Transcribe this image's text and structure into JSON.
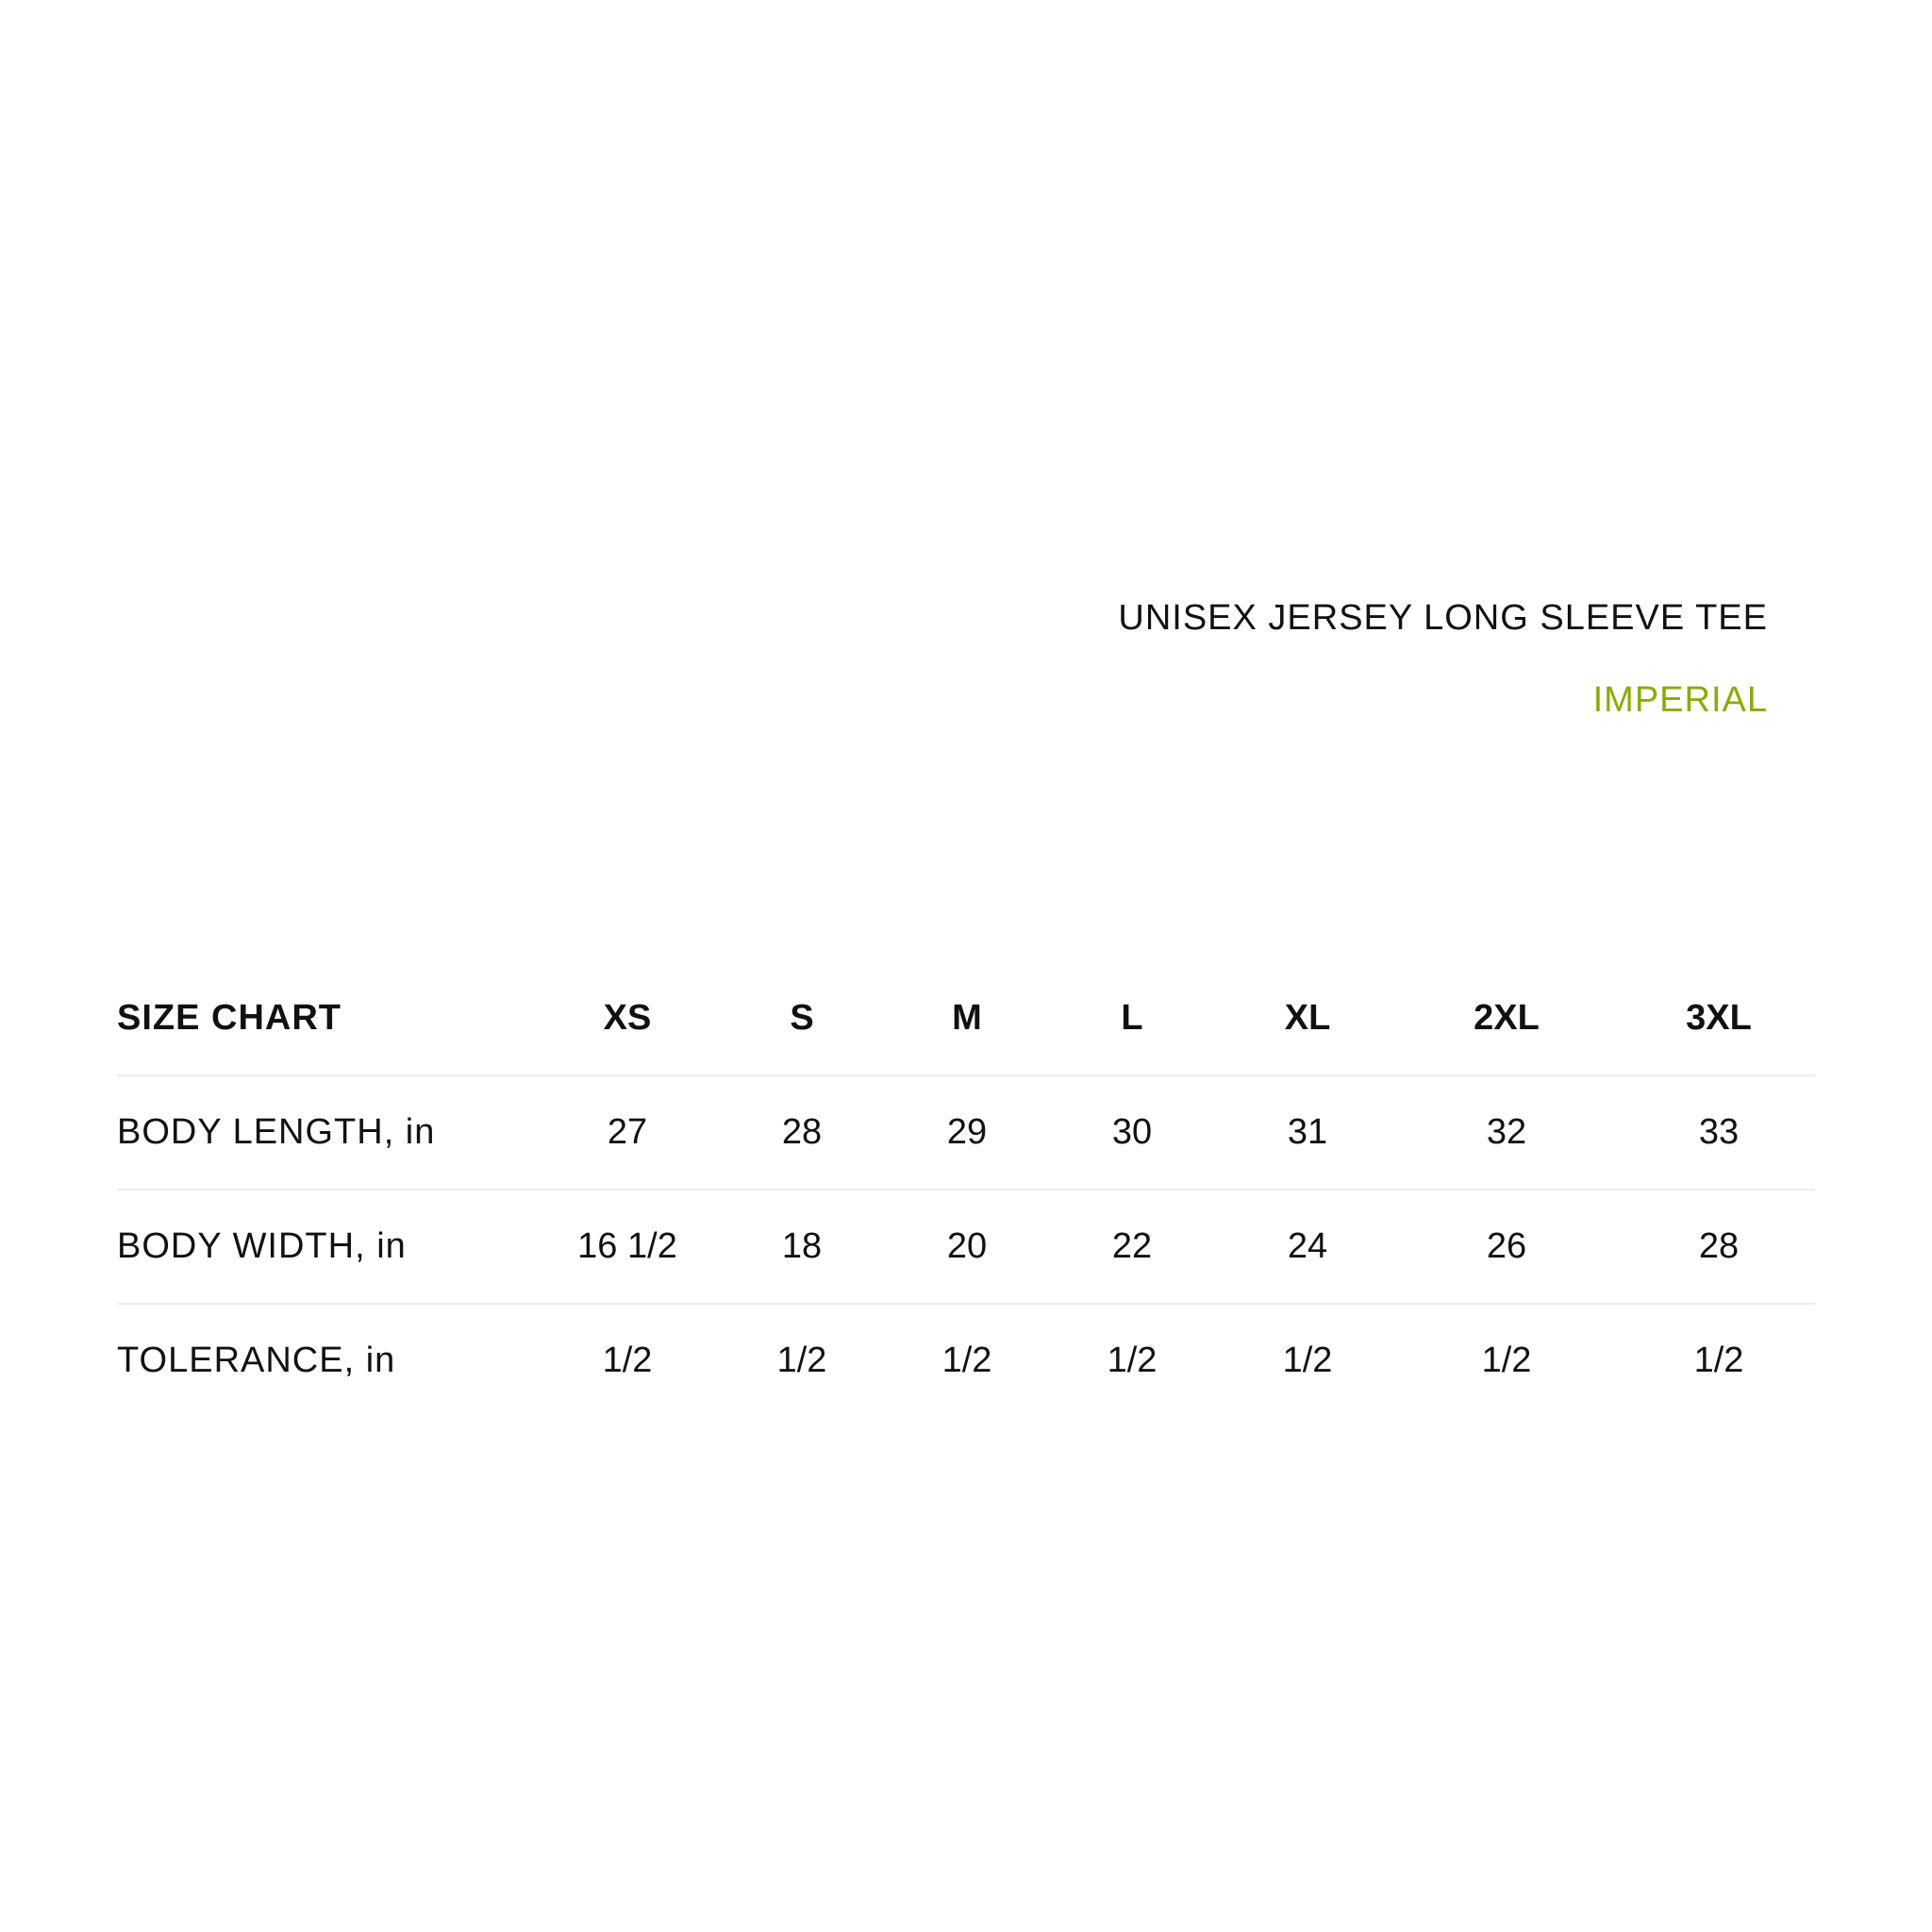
{
  "title": "UNISEX JERSEY LONG SLEEVE TEE",
  "unit_system": "IMPERIAL",
  "colors": {
    "accent": "#8aab0a",
    "text": "#111111",
    "divider": "#ececec"
  },
  "table": {
    "header": "SIZE CHART",
    "sizes": [
      "XS",
      "S",
      "M",
      "L",
      "XL",
      "2XL",
      "3XL"
    ],
    "rows": [
      {
        "label": "BODY LENGTH, in",
        "values": [
          "27",
          "28",
          "29",
          "30",
          "31",
          "32",
          "33"
        ]
      },
      {
        "label": "BODY WIDTH, in",
        "values": [
          "16 1/2",
          "18",
          "20",
          "22",
          "24",
          "26",
          "28"
        ]
      },
      {
        "label": "TOLERANCE, in",
        "values": [
          "1/2",
          "1/2",
          "1/2",
          "1/2",
          "1/2",
          "1/2",
          "1/2"
        ]
      }
    ]
  }
}
